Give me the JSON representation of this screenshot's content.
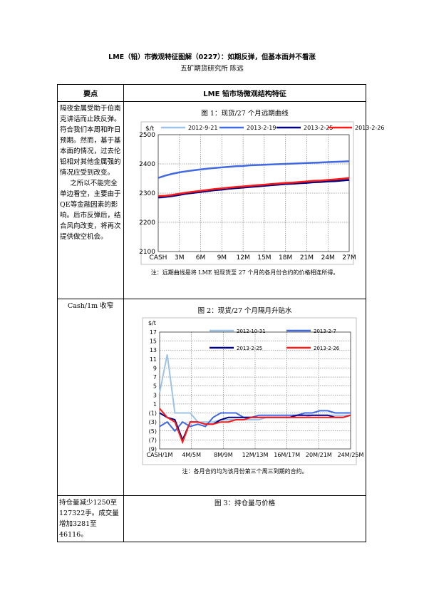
{
  "doc": {
    "title": "LME（铅）市微观特征图解（0227）：如期反弹，但基本面并不看涨",
    "subtitle": "五矿期货研究所    陈远"
  },
  "table": {
    "col_left": "要点",
    "col_right": "LME 铅市场微观结构特征",
    "row1_left_p1": "隔夜金属受助于伯南克讲话而止跌反弹。符合我们本周和昨日预期。然而，基于基本面的情况，过去伦铅相对其他金属强的情况应受到改变。",
    "row1_left_p2": "之所以不能完全单边看空，主要由于QE等金融因素的影响。后市反弹后，结合风向改变，将再次提供做空机会。",
    "row2_left": "Cash/1m 收窄",
    "row3_left": "持仓量减少1250至127322手。成交量增加3281至46116。",
    "fig1_title": "图 1：现货/27 个月远期曲线",
    "fig1_note": "注：远期曲线是将 LME 铅现货至 27 个月的各月份合约的价格相连所得。",
    "fig2_title": "图 2：现货/27 个月隔月升贴水",
    "fig2_note": "注：各月合约均为该月份第三个周三到期的合约。",
    "fig3_title": "图 3：持仓量与价格"
  },
  "chart_data": [
    {
      "type": "line",
      "ylabel": "$/t",
      "ylim": [
        2100,
        2500
      ],
      "yticks": [
        "2500",
        "2400",
        "2300",
        "2200",
        "2100"
      ],
      "x_ticks": [
        "CASH",
        "3M",
        "6M",
        "9M",
        "12M",
        "15M",
        "18M",
        "21M",
        "24M",
        "27M"
      ],
      "grid": true,
      "legend_position": "top",
      "series": [
        {
          "name": "2012-9-21",
          "color": "#9dc3e6",
          "values": [
            2284,
            2286,
            2290,
            2294,
            2298,
            2302,
            2305,
            2308,
            2310,
            2313,
            2316,
            2318,
            2320,
            2322,
            2324,
            2326,
            2328,
            2330,
            2332,
            2334,
            2336,
            2337,
            2339,
            2341,
            2343,
            2345,
            2347,
            2349
          ]
        },
        {
          "name": "2013-2-19",
          "color": "#4169e1",
          "values": [
            2352,
            2360,
            2366,
            2371,
            2375,
            2378,
            2381,
            2384,
            2386,
            2388,
            2390,
            2392,
            2393,
            2395,
            2396,
            2397,
            2398,
            2399,
            2400,
            2401,
            2402,
            2403,
            2404,
            2405,
            2406,
            2407,
            2408,
            2409
          ]
        },
        {
          "name": "2013-2-25",
          "color": "#000080",
          "values": [
            2285,
            2287,
            2290,
            2294,
            2298,
            2301,
            2304,
            2307,
            2310,
            2312,
            2315,
            2317,
            2319,
            2321,
            2323,
            2325,
            2327,
            2329,
            2331,
            2332,
            2334,
            2335,
            2337,
            2338,
            2340,
            2341,
            2343,
            2345
          ]
        },
        {
          "name": "2013-2-26",
          "color": "#ff1a1a",
          "values": [
            2290,
            2291,
            2294,
            2298,
            2302,
            2305,
            2308,
            2311,
            2314,
            2316,
            2319,
            2321,
            2323,
            2325,
            2327,
            2329,
            2331,
            2333,
            2335,
            2336,
            2338,
            2340,
            2342,
            2343,
            2345,
            2347,
            2349,
            2352
          ]
        }
      ]
    },
    {
      "type": "line",
      "ylabel": "$/t",
      "ylim": [
        -9,
        17
      ],
      "yticks": [
        "17",
        "15",
        "13",
        "11",
        "9",
        "7",
        "5",
        "3",
        "1",
        "(1)",
        "(3)",
        "(5)",
        "(7)",
        "(9)"
      ],
      "x_ticks": [
        "CASH/1M",
        "4M/5M",
        "8M/9M",
        "12M/13M",
        "16M/17M",
        "20M/21M",
        "24M/25M"
      ],
      "grid": true,
      "legend_position": "top",
      "series": [
        {
          "name": "2012-10-31",
          "color": "#9dc3e6",
          "values": [
            3.5,
            12,
            -1,
            -1,
            -1,
            -3,
            -3,
            -3,
            -2.5,
            -2.5,
            -2.5,
            -2.5,
            -2.5,
            -2.5,
            -2,
            -2,
            -2,
            -2,
            -2,
            -2,
            -1.5,
            -1.5,
            -1.5,
            -1.5,
            -1.5,
            -1.5
          ]
        },
        {
          "name": "2013-2-7",
          "color": "#4169e1",
          "values": [
            -4,
            -3,
            -5,
            -3,
            -4,
            -3.5,
            -4,
            -2,
            -1,
            -1,
            -1,
            -2,
            -2,
            -1.5,
            -1.5,
            -1.5,
            -1.5,
            -1.5,
            -1.5,
            -1,
            -1,
            -0.5,
            -0.5,
            -1,
            -1,
            -1
          ]
        },
        {
          "name": "2013-2-25",
          "color": "#000080",
          "values": [
            -1,
            -2,
            -2.5,
            -7,
            -3,
            -3,
            -3.5,
            -3.5,
            -2.5,
            -2,
            -2,
            -2,
            -2,
            -2,
            -2,
            -2,
            -2,
            -2,
            -1.5,
            -1.5,
            -1.5,
            -1.5,
            -1.5,
            -2,
            -2,
            -1.5
          ]
        },
        {
          "name": "2013-2-26",
          "color": "#ff1a1a",
          "values": [
            0,
            -2,
            -3,
            -7.5,
            -3,
            -3,
            -3.5,
            -3.5,
            -3,
            -3,
            -2.5,
            -2.5,
            -2,
            -2,
            -2,
            -2,
            -2,
            -2,
            -2,
            -2,
            -2,
            -2,
            -2,
            -2,
            -2,
            -1.5
          ]
        }
      ]
    }
  ]
}
